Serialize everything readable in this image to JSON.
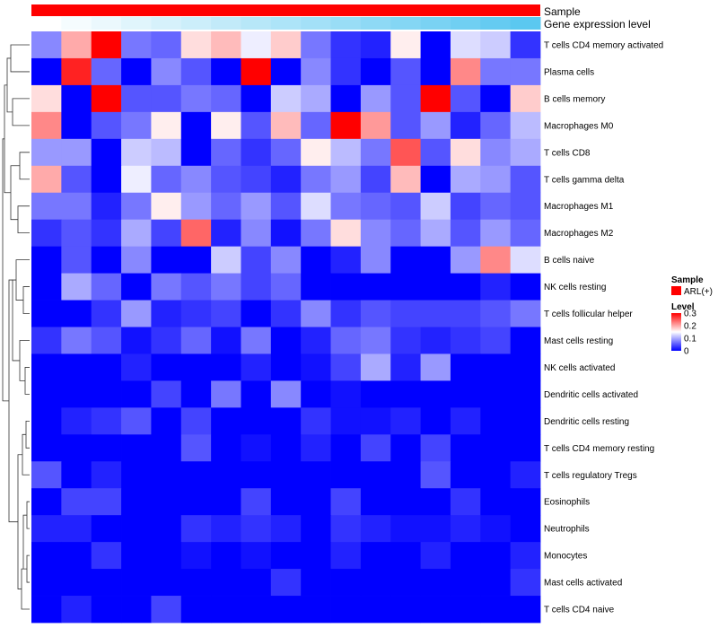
{
  "chart_data": {
    "type": "heatmap",
    "title": "",
    "annotations": {
      "sample_label": "Sample",
      "gene_label": "Gene expression level",
      "sample_color": "#ff0000",
      "gene_gradient": [
        "#ffffff",
        "#5bc8f0"
      ]
    },
    "rows": [
      "T cells CD4 memory activated",
      "Plasma cells",
      "B cells memory",
      "Macrophages M0",
      "T cells CD8",
      "T cells gamma delta",
      "Macrophages M1",
      "Macrophages M2",
      "B cells naive",
      "NK cells resting",
      "T cells follicular helper",
      "Mast cells resting",
      "NK cells activated",
      "Dendritic cells activated",
      "Dendritic cells resting",
      "T cells CD4 memory resting",
      "T cells regulatory  Tregs",
      "Eosinophils",
      "Neutrophils",
      "Monocytes",
      "Mast cells activated",
      "T cells CD4 naive"
    ],
    "n_columns": 17,
    "values": [
      [
        0.08,
        0.2,
        0.3,
        0.07,
        0.06,
        0.17,
        0.19,
        0.14,
        0.18,
        0.07,
        0.03,
        0.02,
        0.16,
        0,
        0.13,
        0.12,
        0.03
      ],
      [
        0,
        0.28,
        0.06,
        0,
        0.08,
        0.05,
        0,
        0.3,
        0,
        0.08,
        0.03,
        0,
        0.05,
        0,
        0.22,
        0.07,
        0.07
      ],
      [
        0.17,
        0,
        0.3,
        0.05,
        0.05,
        0.07,
        0.06,
        0,
        0.12,
        0.1,
        0,
        0.09,
        0.05,
        0.3,
        0.05,
        0,
        0.18
      ],
      [
        0.22,
        0,
        0.05,
        0.07,
        0.16,
        0,
        0.16,
        0.05,
        0.19,
        0.06,
        0.3,
        0.21,
        0.05,
        0.09,
        0.02,
        0.06,
        0.11
      ],
      [
        0.09,
        0.09,
        0,
        0.12,
        0.11,
        0,
        0.06,
        0.03,
        0.06,
        0.16,
        0.11,
        0.07,
        0.25,
        0.05,
        0.17,
        0.08,
        0.1
      ],
      [
        0.2,
        0.05,
        0,
        0.14,
        0.06,
        0.08,
        0.05,
        0.04,
        0.02,
        0.07,
        0.09,
        0.04,
        0.19,
        0,
        0.1,
        0.09,
        0.05
      ],
      [
        0.07,
        0.07,
        0.02,
        0.07,
        0.16,
        0.09,
        0.06,
        0.09,
        0.05,
        0.13,
        0.07,
        0.06,
        0.05,
        0.12,
        0.04,
        0.06,
        0.05
      ],
      [
        0.03,
        0.05,
        0.03,
        0.1,
        0.04,
        0.24,
        0.02,
        0.08,
        0.01,
        0.07,
        0.17,
        0.08,
        0.06,
        0.1,
        0.05,
        0.09,
        0.06
      ],
      [
        0,
        0.05,
        0,
        0.08,
        0,
        0,
        0.12,
        0.04,
        0.08,
        0,
        0.02,
        0.08,
        0,
        0,
        0.09,
        0.22,
        0.13
      ],
      [
        0,
        0.1,
        0.06,
        0,
        0.07,
        0.05,
        0.07,
        0.04,
        0.06,
        0,
        0,
        0,
        0,
        0,
        0,
        0.02,
        0
      ],
      [
        0,
        0,
        0.03,
        0.09,
        0.02,
        0.03,
        0.04,
        0,
        0.03,
        0.08,
        0.03,
        0.05,
        0.04,
        0.04,
        0.04,
        0.05,
        0.07
      ],
      [
        0.03,
        0.07,
        0.05,
        0.01,
        0.03,
        0.06,
        0.01,
        0.07,
        0,
        0.02,
        0.06,
        0.07,
        0.03,
        0.02,
        0.03,
        0.04,
        0
      ],
      [
        0,
        0,
        0,
        0.02,
        0,
        0,
        0,
        0.02,
        0,
        0.01,
        0.04,
        0.1,
        0.02,
        0.09,
        0,
        0,
        0
      ],
      [
        0,
        0,
        0,
        0,
        0.04,
        0,
        0.07,
        0,
        0.08,
        0,
        0.01,
        0,
        0,
        0,
        0,
        0,
        0
      ],
      [
        0,
        0.02,
        0.03,
        0.05,
        0,
        0.04,
        0,
        0,
        0,
        0.03,
        0.01,
        0.01,
        0.02,
        0,
        0.02,
        0,
        0
      ],
      [
        0,
        0,
        0,
        0,
        0,
        0.05,
        0,
        0.01,
        0,
        0.02,
        0,
        0.04,
        0,
        0.04,
        0,
        0,
        0
      ],
      [
        0.05,
        0,
        0.02,
        0,
        0,
        0,
        0,
        0,
        0,
        0,
        0,
        0,
        0,
        0.05,
        0,
        0,
        0.02
      ],
      [
        0,
        0.04,
        0.04,
        0,
        0,
        0,
        0,
        0.04,
        0,
        0,
        0.04,
        0,
        0,
        0,
        0.03,
        0,
        0
      ],
      [
        0.02,
        0.02,
        0,
        0,
        0,
        0.03,
        0.02,
        0.03,
        0.02,
        0,
        0.03,
        0.02,
        0.01,
        0.01,
        0.02,
        0.01,
        0
      ],
      [
        0,
        0,
        0.03,
        0,
        0,
        0.01,
        0,
        0.01,
        0,
        0,
        0.02,
        0,
        0,
        0.02,
        0,
        0,
        0.02
      ],
      [
        0,
        0,
        0,
        0,
        0,
        0,
        0,
        0,
        0.03,
        0,
        0,
        0,
        0,
        0,
        0,
        0,
        0.03
      ],
      [
        0,
        0.02,
        0,
        0,
        0.04,
        0,
        0,
        0,
        0,
        0,
        0,
        0,
        0,
        0,
        0,
        0,
        0
      ]
    ],
    "color_scale": {
      "domain": [
        0,
        0.15,
        0.3
      ],
      "colors": [
        "#0000ff",
        "#ffffff",
        "#ff0000"
      ]
    },
    "legend": {
      "sample_title": "Sample",
      "sample_item": "ARL(+)",
      "level_title": "Level",
      "ticks": [
        "0.3",
        "0.2",
        "0.1",
        "0"
      ],
      "tick_values": [
        0.3,
        0.2,
        0.1,
        0
      ]
    }
  }
}
